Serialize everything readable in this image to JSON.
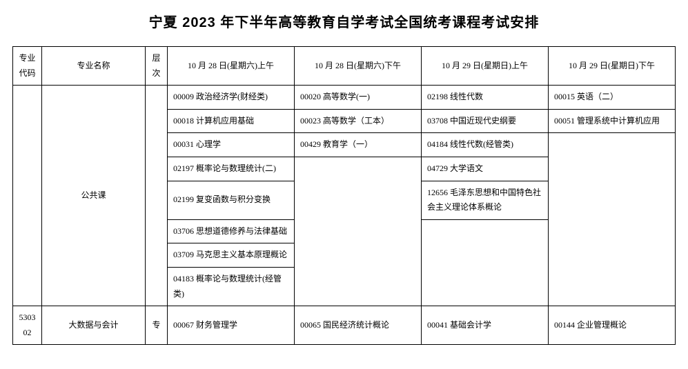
{
  "title": "宁夏 2023 年下半年高等教育自学考试全国统考课程考试安排",
  "headers": {
    "code": "专业代码",
    "name": "专业名称",
    "level": "层次",
    "slot1": "10 月 28 日(星期六)上午",
    "slot2": "10 月 28 日(星期六)下午",
    "slot3": "10 月 29 日(星期日)上午",
    "slot4": "10 月 29 日(星期日)下午"
  },
  "public_course_label": "公共课",
  "public": {
    "r0": {
      "c1": "00009 政治经济学(财经类)",
      "c2": "00020 高等数学(一)",
      "c3": "02198 线性代数",
      "c4": "00015 英语（二）"
    },
    "r1": {
      "c1": "00018 计算机应用基础",
      "c2": "00023 高等数学（工本）",
      "c3": "03708 中国近现代史纲要",
      "c4": "00051 管理系统中计算机应用"
    },
    "r2": {
      "c1": "00031 心理学",
      "c2": "00429 教育学（一）",
      "c3": "04184 线性代数(经管类)"
    },
    "r3": {
      "c1": "02197 概率论与数理统计(二)",
      "c3": "04729 大学语文"
    },
    "r4": {
      "c1": "02199 复变函数与积分变换",
      "c3": "12656 毛泽东思想和中国特色社会主义理论体系概论"
    },
    "r5": {
      "c1": "03706 思想道德修养与法律基础"
    },
    "r6": {
      "c1": "03709 马克思主义基本原理概论"
    },
    "r7": {
      "c1": "04183 概率论与数理统计(经管类)"
    }
  },
  "row2": {
    "code": "530302",
    "name": "大数据与会计",
    "level": "专",
    "c1": "00067 财务管理学",
    "c2": "00065 国民经济统计概论",
    "c3": "00041 基础会计学",
    "c4": "00144 企业管理概论"
  }
}
